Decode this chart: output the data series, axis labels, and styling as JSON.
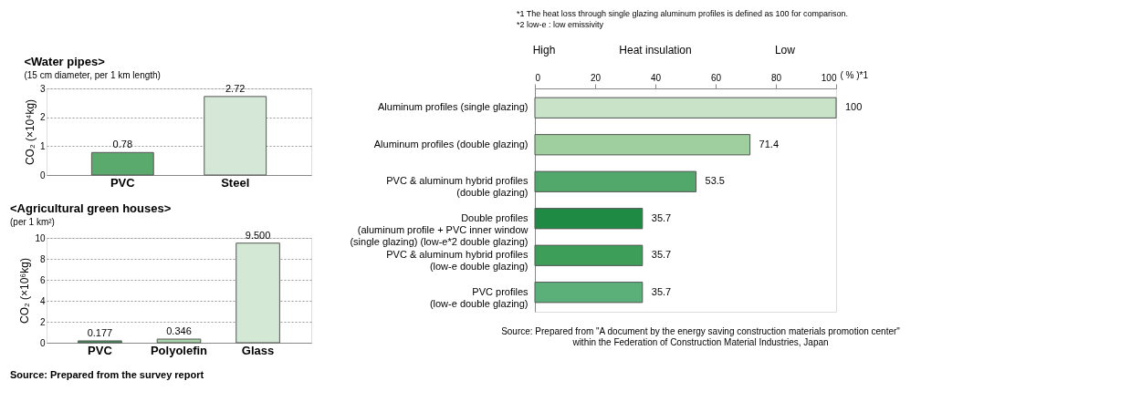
{
  "chart_data": [
    {
      "type": "bar",
      "title": "<Water pipes>",
      "subtitle": "(15 cm diameter, per 1 km length)",
      "ylabel": "CO₂ (×10⁴kg)",
      "categories": [
        "PVC",
        "Steel"
      ],
      "values": [
        0.78,
        2.72
      ],
      "colors": [
        "#5aaa6e",
        "#d5e8d8"
      ],
      "ylim": [
        0,
        3
      ],
      "yticks": [
        0,
        1,
        2,
        3
      ],
      "grid": "y",
      "data_labels": true
    },
    {
      "type": "bar",
      "title": "<Agricultural green houses>",
      "subtitle": "(per 1 km²)",
      "ylabel": "CO₂ (×10⁶kg)",
      "categories": [
        "PVC",
        "Polyolefin",
        "Glass"
      ],
      "values": [
        0.177,
        0.346,
        9.5
      ],
      "value_labels": [
        "0.177",
        "0.346",
        "9.500"
      ],
      "colors": [
        "#3f9a57",
        "#a8d4a8",
        "#d3e8d5"
      ],
      "ylim": [
        0,
        10
      ],
      "yticks": [
        0,
        2,
        4,
        6,
        8,
        10
      ],
      "grid": "y",
      "annotations": [
        "Source: Prepared from the survey report"
      ]
    },
    {
      "type": "bar",
      "orientation": "horizontal",
      "xlabel": "( % )*1",
      "categories": [
        "Aluminum profiles (single glazing)",
        "Aluminum profiles (double glazing)",
        "PVC & aluminum hybrid profiles\n(double glazing)",
        "Double profiles\n(aluminum profile + PVC inner window\n(single glazing) (low-e*2 double glazing)",
        "PVC & aluminum hybrid profiles\n(low-e double glazing)",
        "PVC profiles\n(low-e double glazing)"
      ],
      "values": [
        100,
        71.4,
        53.5,
        35.7,
        35.7,
        35.7
      ],
      "colors": [
        "#c8e3c8",
        "#9fcf9f",
        "#52a86a",
        "#1f8a44",
        "#3d9e5a",
        "#5bb07a"
      ],
      "xlim": [
        0,
        100
      ],
      "xticks": [
        0,
        20,
        40,
        60,
        80,
        100
      ],
      "grid": false,
      "data_labels": true,
      "annotations": [
        "*1 The heat loss through single glazing aluminum profiles is defined as 100 for comparison.",
        "*2 low-e : low emissivity",
        "High",
        "Heat insulation",
        "Low",
        "Source: Prepared from \"A document by the energy saving construction materials promotion center\"\nwithin the Federation of Construction Material Industries, Japan"
      ]
    }
  ]
}
